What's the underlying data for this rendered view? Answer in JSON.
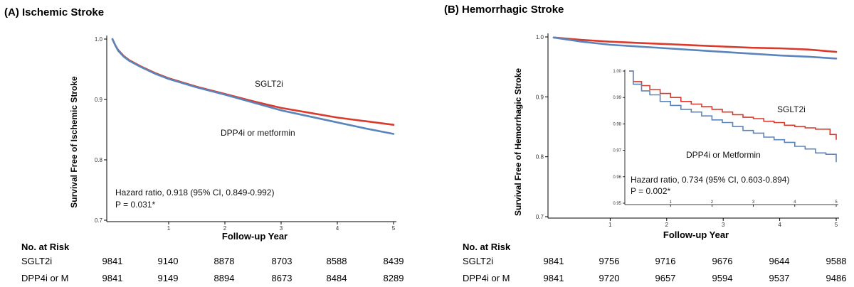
{
  "chart_data": [
    {
      "type": "line",
      "panel": "(A)",
      "title": "Ischemic Stroke",
      "xlabel": "Follow-up Year",
      "ylabel": "Survival Free of Ischemic Stroke",
      "xlim": [
        0,
        5
      ],
      "ylim": [
        0.7,
        1.0
      ],
      "xticks": [
        1,
        2,
        3,
        4,
        5
      ],
      "yticks": [
        "0.7",
        "0.8",
        "0.9",
        "1.0"
      ],
      "series": [
        {
          "label": "SGLT2i",
          "color": "#d93a2b",
          "x": [
            0,
            0.05,
            0.1,
            0.2,
            0.3,
            0.5,
            0.75,
            1,
            1.5,
            2,
            2.5,
            3,
            3.5,
            4,
            4.5,
            5
          ],
          "y": [
            1.0,
            0.99,
            0.982,
            0.972,
            0.965,
            0.955,
            0.944,
            0.935,
            0.921,
            0.909,
            0.897,
            0.886,
            0.878,
            0.87,
            0.864,
            0.858
          ]
        },
        {
          "label": "DPP4i or metformin",
          "color": "#5b84bc",
          "x": [
            0,
            0.05,
            0.1,
            0.2,
            0.3,
            0.5,
            0.75,
            1,
            1.5,
            2,
            2.5,
            3,
            3.5,
            4,
            4.5,
            5
          ],
          "y": [
            1.0,
            0.99,
            0.981,
            0.971,
            0.964,
            0.954,
            0.943,
            0.934,
            0.92,
            0.908,
            0.895,
            0.882,
            0.872,
            0.862,
            0.852,
            0.843
          ]
        }
      ],
      "annotations": {
        "series_label_1": "SGLT2i",
        "series_label_2": "DPP4i or metformin",
        "hr": "Hazard ratio, 0.918 (95% CI, 0.849-0.992)",
        "p": "P = 0.031*"
      },
      "risk_table": {
        "header": "No. at Risk",
        "rows": [
          {
            "label": "SGLT2i",
            "values": [
              "9841",
              "9140",
              "8878",
              "8703",
              "8588",
              "8439"
            ]
          },
          {
            "label": "DPP4i or M",
            "values": [
              "9841",
              "9149",
              "8894",
              "8673",
              "8484",
              "8289"
            ]
          }
        ]
      }
    },
    {
      "type": "line",
      "panel": "(B)",
      "title": "Hemorrhagic Stroke",
      "xlabel": "Follow-up Year",
      "ylabel": "Survival Free of Hemorrhagic Stroke",
      "xlim": [
        0,
        5
      ],
      "ylim": [
        0.7,
        1.0
      ],
      "xticks": [
        1,
        2,
        3,
        4,
        5
      ],
      "yticks": [
        "0.7",
        "0.8",
        "0.9",
        "1.0"
      ],
      "series": [
        {
          "label": "SGLT2i",
          "color": "#d93a2b",
          "x": [
            0,
            0.5,
            1,
            1.5,
            2,
            2.5,
            3,
            3.5,
            4,
            4.5,
            5
          ],
          "y": [
            0.999,
            0.995,
            0.992,
            0.99,
            0.988,
            0.986,
            0.984,
            0.982,
            0.981,
            0.979,
            0.975
          ]
        },
        {
          "label": "DPP4i or Metformin",
          "color": "#5b84bc",
          "x": [
            0,
            0.5,
            1,
            1.5,
            2,
            2.5,
            3,
            3.5,
            4,
            4.5,
            5
          ],
          "y": [
            0.999,
            0.992,
            0.987,
            0.984,
            0.981,
            0.978,
            0.975,
            0.972,
            0.969,
            0.967,
            0.964
          ]
        }
      ],
      "inset": {
        "xlim": [
          0,
          5
        ],
        "ylim": [
          0.95,
          1.0
        ],
        "xticks": [
          1,
          2,
          3,
          4,
          5
        ],
        "yticks": [
          "0.95",
          "0.96",
          "0.97",
          "0.98",
          "0.99",
          "1.00"
        ],
        "series": [
          {
            "label": "SGLT2i",
            "color": "#d93a2b",
            "x": [
              0,
              0.1,
              0.3,
              0.5,
              0.75,
              1,
              1.25,
              1.5,
              1.75,
              2,
              2.25,
              2.5,
              2.75,
              3,
              3.25,
              3.5,
              3.75,
              4,
              4.25,
              4.5,
              4.75,
              4.85,
              5
            ],
            "y": [
              1.0,
              0.996,
              0.9945,
              0.993,
              0.9915,
              0.99,
              0.9885,
              0.9875,
              0.9865,
              0.9855,
              0.9845,
              0.9835,
              0.9825,
              0.982,
              0.981,
              0.9805,
              0.9795,
              0.979,
              0.9785,
              0.978,
              0.978,
              0.976,
              0.974
            ]
          },
          {
            "label": "DPP4i or Metformin",
            "color": "#5b84bc",
            "x": [
              0,
              0.1,
              0.3,
              0.5,
              0.75,
              1,
              1.25,
              1.5,
              1.75,
              2,
              2.25,
              2.5,
              2.75,
              3,
              3.25,
              3.5,
              3.75,
              4,
              4.25,
              4.5,
              4.75,
              5
            ],
            "y": [
              1.0,
              0.995,
              0.9925,
              0.991,
              0.9885,
              0.987,
              0.9855,
              0.9845,
              0.983,
              0.9815,
              0.9805,
              0.979,
              0.9775,
              0.9765,
              0.975,
              0.974,
              0.973,
              0.9715,
              0.9705,
              0.969,
              0.9685,
              0.9655
            ]
          }
        ],
        "annotations": {
          "series_label_1": "SGLT2i",
          "series_label_2": "DPP4i or Metformin",
          "hr": "Hazard ratio, 0.734 (95% CI, 0.603-0.894)",
          "p": "P = 0.002*"
        }
      },
      "risk_table": {
        "header": "No. at Risk",
        "rows": [
          {
            "label": "SGLT2i",
            "values": [
              "9841",
              "9756",
              "9716",
              "9676",
              "9644",
              "9588"
            ]
          },
          {
            "label": "DPP4i or M",
            "values": [
              "9841",
              "9720",
              "9657",
              "9594",
              "9537",
              "9486"
            ]
          }
        ]
      }
    }
  ]
}
